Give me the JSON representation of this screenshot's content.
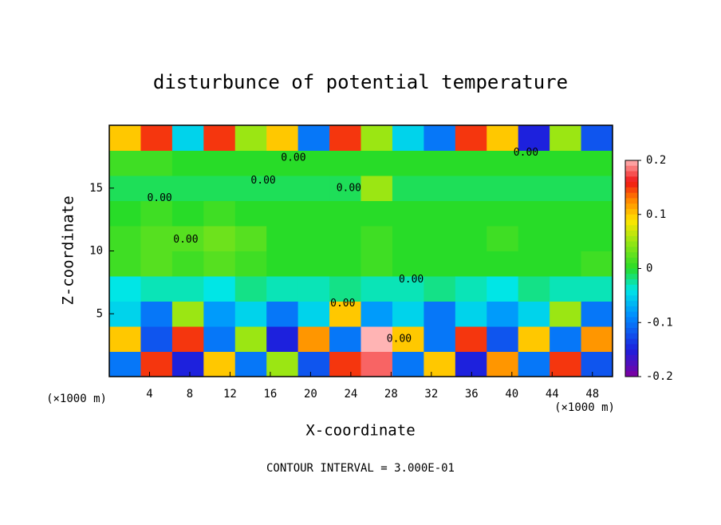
{
  "chart_data": {
    "type": "heatmap",
    "title": "disturbunce of potential temperature",
    "x_label": "X-coordinate",
    "y_label": "Z-coordinate",
    "x_unit_label": "(×1000 m)",
    "footer": "CONTOUR INTERVAL = 3.000E-01",
    "xlim": [
      0,
      50
    ],
    "ylim": [
      0,
      20
    ],
    "xticks": [
      4,
      8,
      12,
      16,
      20,
      24,
      28,
      32,
      36,
      40,
      44,
      48
    ],
    "yticks": [
      5,
      10,
      15
    ],
    "clim": [
      -0.2,
      0.2
    ],
    "cticks": [
      0.2,
      0.1,
      0,
      -0.1,
      -0.2
    ],
    "x_edges": [
      0,
      3.125,
      6.25,
      9.375,
      12.5,
      15.625,
      18.75,
      21.875,
      25,
      28.125,
      31.25,
      34.375,
      37.5,
      40.625,
      43.75,
      46.875,
      50
    ],
    "y_edges": [
      0,
      2,
      4,
      6,
      8,
      10,
      12,
      14,
      16,
      18,
      20
    ],
    "z": [
      [
        -0.1,
        0.15,
        -0.15,
        0.1,
        -0.1,
        0.05,
        -0.12,
        0.15,
        0.18,
        -0.1,
        0.1,
        -0.15,
        0.12,
        -0.1,
        0.15,
        -0.12
      ],
      [
        0.1,
        -0.12,
        0.15,
        -0.1,
        0.05,
        -0.15,
        0.12,
        -0.1,
        0.2,
        0.1,
        -0.1,
        0.15,
        -0.12,
        0.1,
        -0.1,
        0.12
      ],
      [
        -0.05,
        -0.1,
        0.05,
        -0.08,
        -0.05,
        -0.1,
        -0.05,
        0.1,
        -0.08,
        -0.05,
        -0.1,
        -0.05,
        -0.08,
        -0.05,
        0.05,
        -0.1
      ],
      [
        -0.04,
        -0.03,
        -0.03,
        -0.04,
        -0.02,
        -0.03,
        -0.03,
        -0.02,
        -0.03,
        -0.03,
        -0.02,
        -0.03,
        -0.04,
        -0.02,
        -0.03,
        -0.03
      ],
      [
        0.01,
        0.02,
        0.01,
        0.02,
        0.01,
        0,
        0,
        0,
        0.01,
        0,
        0,
        0,
        0,
        0,
        0,
        0.01
      ],
      [
        0.01,
        0.02,
        0.02,
        0.03,
        0.02,
        0,
        0,
        0,
        0.01,
        0,
        0,
        0,
        0.01,
        0,
        0,
        0
      ],
      [
        0,
        0.01,
        0,
        0.01,
        0,
        0,
        0,
        0,
        0,
        0,
        0,
        0,
        0,
        0,
        0,
        0
      ],
      [
        -0.01,
        -0.01,
        -0.01,
        -0.01,
        -0.01,
        -0.01,
        -0.01,
        -0.01,
        0.05,
        -0.01,
        -0.01,
        -0.01,
        -0.01,
        -0.01,
        -0.01,
        -0.01
      ],
      [
        0.01,
        0.01,
        0,
        0,
        0,
        0,
        0,
        0,
        0,
        0,
        0,
        0,
        0,
        0,
        0,
        0
      ],
      [
        0.1,
        0.15,
        -0.05,
        0.15,
        0.05,
        0.1,
        -0.1,
        0.15,
        0.05,
        -0.05,
        -0.1,
        0.15,
        0.1,
        -0.15,
        0.05,
        -0.12
      ]
    ],
    "contour_labels": [
      {
        "text": "0.00",
        "x": 41.4,
        "y": 17.8
      },
      {
        "text": "0.00",
        "x": 18.3,
        "y": 17.4
      },
      {
        "text": "0.00",
        "x": 15.3,
        "y": 15.6
      },
      {
        "text": "0.00",
        "x": 23.8,
        "y": 15.0
      },
      {
        "text": "0.00",
        "x": 5.0,
        "y": 14.2
      },
      {
        "text": "0.00",
        "x": 7.6,
        "y": 10.9
      },
      {
        "text": "0.00",
        "x": 30.0,
        "y": 7.7
      },
      {
        "text": "0.00",
        "x": 23.2,
        "y": 5.8
      },
      {
        "text": "0.00",
        "x": 28.8,
        "y": 3.0
      }
    ]
  }
}
